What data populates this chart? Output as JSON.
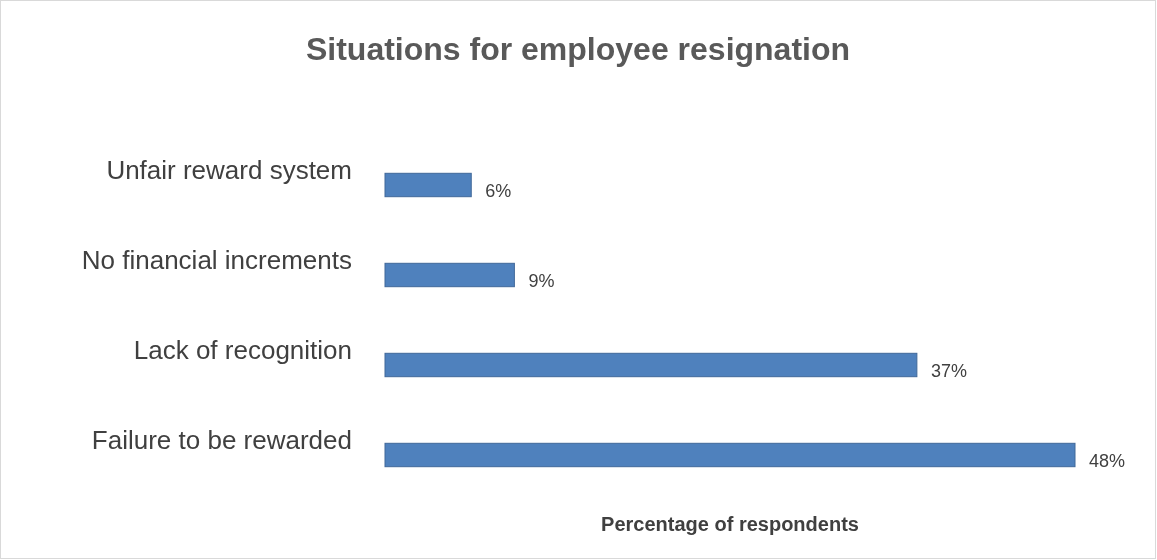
{
  "chart_data": {
    "type": "bar",
    "orientation": "horizontal",
    "title": "Situations for employee resignation",
    "xlabel": "Percentage of respondents",
    "categories": [
      "Unfair reward system",
      "No financial increments",
      "Lack of recognition",
      "Failure to be rewarded"
    ],
    "values": [
      6,
      9,
      37,
      48
    ],
    "value_labels": [
      "6%",
      "9%",
      "37%",
      "48%"
    ],
    "color": "#4f81bd",
    "tick_labels": "y"
  }
}
